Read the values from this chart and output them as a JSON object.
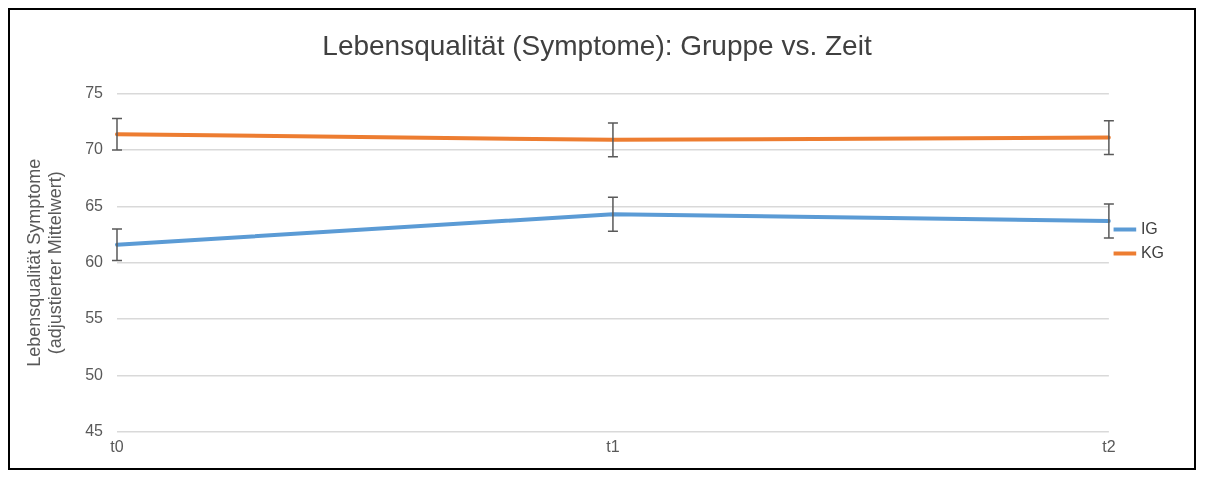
{
  "chart_data": {
    "type": "line",
    "title": "Lebensqualität (Symptome): Gruppe vs. Zeit",
    "ylabel": "Lebensqualität Symptome\n(adjustierter Mittelwert)",
    "categories": [
      "t0",
      "t1",
      "t2"
    ],
    "series": [
      {
        "name": "IG",
        "color": "#5b9bd5",
        "values": [
          61.6,
          64.3,
          63.7
        ],
        "errors": [
          1.4,
          1.5,
          1.5
        ]
      },
      {
        "name": "KG",
        "color": "#ed7d31",
        "values": [
          71.4,
          70.9,
          71.1
        ],
        "errors": [
          1.4,
          1.5,
          1.5
        ]
      }
    ],
    "ylim": [
      45,
      75
    ],
    "yticks": [
      45,
      50,
      55,
      60,
      65,
      70,
      75
    ],
    "grid": "y",
    "legend": "right",
    "marker": "none"
  }
}
